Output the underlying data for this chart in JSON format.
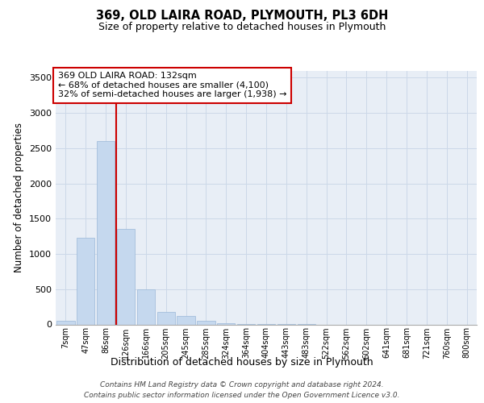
{
  "title1": "369, OLD LAIRA ROAD, PLYMOUTH, PL3 6DH",
  "title2": "Size of property relative to detached houses in Plymouth",
  "xlabel": "Distribution of detached houses by size in Plymouth",
  "ylabel": "Number of detached properties",
  "categories": [
    "7sqm",
    "47sqm",
    "86sqm",
    "126sqm",
    "166sqm",
    "205sqm",
    "245sqm",
    "285sqm",
    "324sqm",
    "364sqm",
    "404sqm",
    "443sqm",
    "483sqm",
    "522sqm",
    "562sqm",
    "602sqm",
    "641sqm",
    "681sqm",
    "721sqm",
    "760sqm",
    "800sqm"
  ],
  "values": [
    55,
    1230,
    2600,
    1350,
    500,
    175,
    120,
    50,
    20,
    10,
    5,
    5,
    3,
    0,
    0,
    0,
    0,
    0,
    0,
    0,
    0
  ],
  "bar_color": "#c5d8ee",
  "bar_edge_color": "#9ab8d8",
  "red_line_index": 2.5,
  "ylim": [
    0,
    3600
  ],
  "yticks": [
    0,
    500,
    1000,
    1500,
    2000,
    2500,
    3000,
    3500
  ],
  "annotation_title": "369 OLD LAIRA ROAD: 132sqm",
  "annotation_line1": "← 68% of detached houses are smaller (4,100)",
  "annotation_line2": "32% of semi-detached houses are larger (1,938) →",
  "annotation_box_color": "#ffffff",
  "annotation_box_edge": "#cc0000",
  "red_line_color": "#cc0000",
  "grid_color": "#ccd8e8",
  "background_color": "#e8eef6",
  "footer1": "Contains HM Land Registry data © Crown copyright and database right 2024.",
  "footer2": "Contains public sector information licensed under the Open Government Licence v3.0."
}
